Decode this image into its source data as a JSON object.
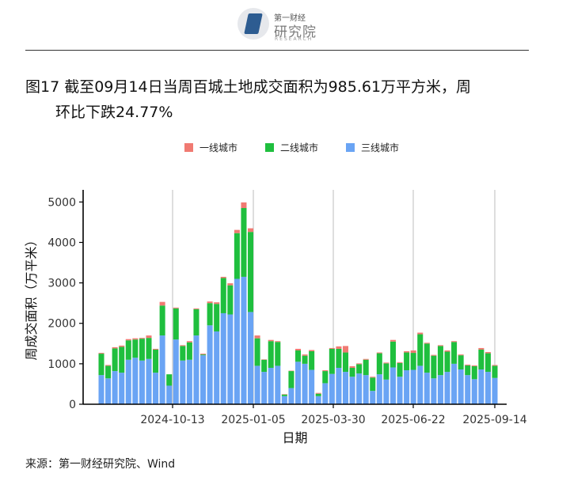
{
  "header": {
    "logo_small": "第一财经",
    "logo_main": "研究院",
    "logo_sub": "RESEARCH"
  },
  "title": {
    "line1": "图17 截至09月14日当周百城土地成交面积为985.61万平方米，周",
    "line2": "环比下跌24.77%"
  },
  "legend": [
    "一线城市",
    "二线城市",
    "三线城市"
  ],
  "colors": {
    "tier1": "#f07a72",
    "tier2": "#1fbf3e",
    "tier3": "#6aa4f4"
  },
  "source": "来源：第一财经研究院、Wind",
  "chart_data": {
    "type": "bar",
    "stacked": true,
    "ylabel": "周成交面积（万平米）",
    "xlabel": "日期",
    "ylim": [
      0,
      5300
    ],
    "yticks": [
      0,
      1000,
      2000,
      3000,
      4000,
      5000
    ],
    "xticks": [
      "2024-10-13",
      "2025-01-05",
      "2025-03-30",
      "2025-06-22",
      "2025-09-14"
    ],
    "x_gridlines": true,
    "legend_position": "top",
    "series": [
      {
        "name": "三线城市",
        "values": [
          720,
          640,
          820,
          780,
          1100,
          1150,
          1080,
          1120,
          780,
          1700,
          460,
          1600,
          1080,
          1100,
          1700,
          1210,
          1950,
          1800,
          2250,
          2220,
          3100,
          3150,
          2280,
          950,
          800,
          900,
          950,
          200,
          400,
          1050,
          1000,
          850,
          200,
          520,
          750,
          900,
          800,
          680,
          760,
          720,
          330,
          740,
          610,
          910,
          680,
          840,
          850,
          950,
          780,
          640,
          720,
          800,
          1000,
          860,
          720,
          620,
          860,
          800,
          650
        ]
      },
      {
        "name": "二线城市",
        "values": [
          530,
          310,
          560,
          640,
          480,
          450,
          540,
          520,
          570,
          740,
          280,
          770,
          360,
          430,
          650,
          20,
          550,
          680,
          870,
          720,
          1130,
          1700,
          1980,
          680,
          300,
          660,
          590,
          40,
          420,
          280,
          200,
          460,
          60,
          300,
          620,
          470,
          480,
          220,
          230,
          380,
          330,
          520,
          400,
          640,
          340,
          440,
          420,
          780,
          720,
          560,
          720,
          500,
          540,
          350,
          240,
          320,
          490,
          460,
          300
        ]
      },
      {
        "name": "一线城市",
        "values": [
          20,
          20,
          30,
          30,
          30,
          30,
          20,
          60,
          20,
          90,
          0,
          20,
          20,
          30,
          20,
          20,
          40,
          40,
          30,
          50,
          80,
          140,
          90,
          70,
          10,
          30,
          20,
          10,
          10,
          40,
          30,
          30,
          20,
          20,
          20,
          60,
          160,
          40,
          20,
          20,
          20,
          20,
          20,
          40,
          20,
          30,
          60,
          40,
          20,
          20,
          20,
          30,
          20,
          20,
          20,
          20,
          40,
          30,
          20
        ]
      }
    ]
  }
}
